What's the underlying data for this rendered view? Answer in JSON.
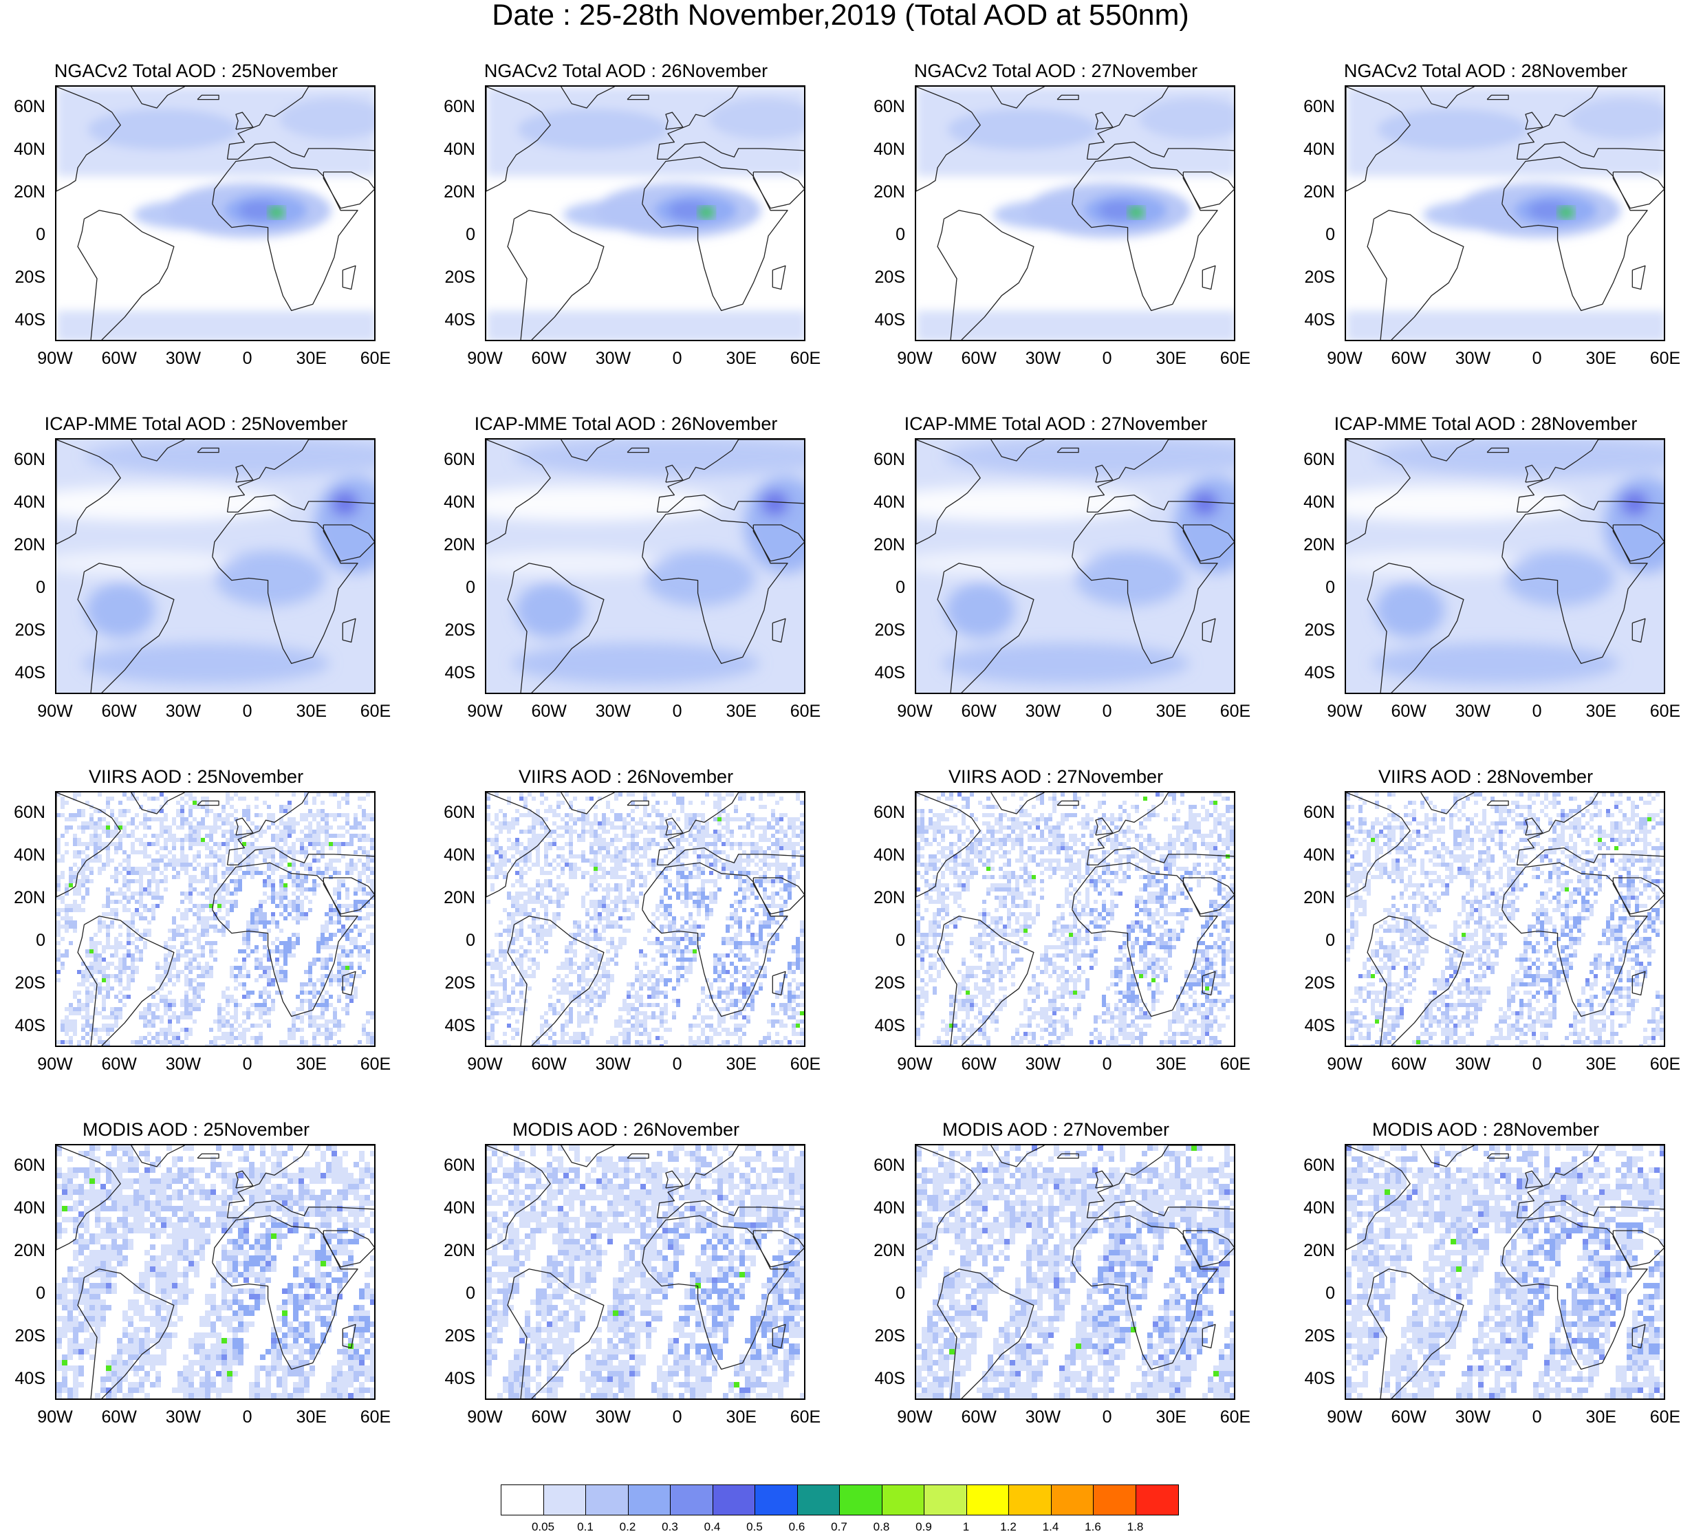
{
  "title": "Date : 25-28th November,2019 (Total AOD at 550nm)",
  "panels": [
    {
      "title": "NGACv2 Total AOD : 25November",
      "style": "model-dust"
    },
    {
      "title": "NGACv2 Total AOD : 26November",
      "style": "model-dust"
    },
    {
      "title": "NGACv2 Total AOD : 27November",
      "style": "model-dust"
    },
    {
      "title": "NGACv2 Total AOD : 28November",
      "style": "model-dust"
    },
    {
      "title": "ICAP-MME Total AOD : 25November",
      "style": "model-smooth"
    },
    {
      "title": "ICAP-MME Total AOD : 26November",
      "style": "model-smooth"
    },
    {
      "title": "ICAP-MME Total AOD : 27November",
      "style": "model-smooth"
    },
    {
      "title": "ICAP-MME Total AOD : 28November",
      "style": "model-smooth"
    },
    {
      "title": "VIIRS AOD : 25November",
      "style": "satellite-sparse"
    },
    {
      "title": "VIIRS AOD : 26November",
      "style": "satellite-sparse"
    },
    {
      "title": "VIIRS AOD : 27November",
      "style": "satellite-sparse"
    },
    {
      "title": "VIIRS AOD : 28November",
      "style": "satellite-sparse"
    },
    {
      "title": "MODIS AOD : 25November",
      "style": "satellite-swath"
    },
    {
      "title": "MODIS AOD : 26November",
      "style": "satellite-swath"
    },
    {
      "title": "MODIS AOD : 27November",
      "style": "satellite-swath"
    },
    {
      "title": "MODIS AOD : 28November",
      "style": "satellite-swath"
    }
  ],
  "lat_labels": [
    "60N",
    "40N",
    "20N",
    "0",
    "20S",
    "40S"
  ],
  "lat_values": [
    60,
    40,
    20,
    0,
    -20,
    -40
  ],
  "lon_labels": [
    "90W",
    "60W",
    "30W",
    "0",
    "30E",
    "60E"
  ],
  "lon_values": [
    -90,
    -60,
    -30,
    0,
    30,
    60
  ],
  "map_extent": {
    "lon": [
      -90,
      60
    ],
    "lat": [
      -50,
      70
    ]
  },
  "colorbar": {
    "colors": [
      "#ffffff",
      "#d7e0fa",
      "#b4c5f7",
      "#8fabf5",
      "#7a8ff0",
      "#5c63e6",
      "#1f5cf5",
      "#14968c",
      "#50e61e",
      "#96f01e",
      "#c8f550",
      "#ffff00",
      "#ffc800",
      "#ff9b00",
      "#ff6e00",
      "#ff2814"
    ],
    "labels": [
      "0.05",
      "0.1",
      "0.2",
      "0.3",
      "0.4",
      "0.5",
      "0.6",
      "0.7",
      "0.8",
      "0.9",
      "1",
      "1.2",
      "1.4",
      "1.6",
      "1.8"
    ]
  }
}
